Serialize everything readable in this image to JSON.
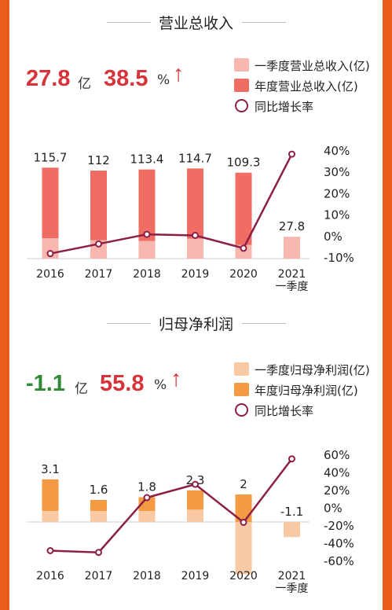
{
  "revenue": {
    "title": "营业总收入",
    "headline": {
      "value": "27.8",
      "unit": "亿",
      "growth": "38.5",
      "growth_unit": "%",
      "arrow": "↑",
      "value_color": "#d6333a",
      "growth_color": "#d6333a"
    },
    "legend": [
      "一季度营业总收入(亿)",
      "年度营业总收入(亿)",
      "同比增长率"
    ],
    "colors": {
      "q1": "#f7b7ae",
      "annual": "#ef6d62",
      "line": "#8b1f48"
    },
    "chart_data": {
      "type": "bar+line",
      "categories": [
        "2016",
        "2017",
        "2018",
        "2019",
        "2020",
        "2021\n一季度"
      ],
      "series": [
        {
          "name": "一季度营业总收入(亿)",
          "values": [
            26,
            23.5,
            22.5,
            25.5,
            17.5,
            27.8
          ]
        },
        {
          "name": "年度营业总收入(亿)",
          "values": [
            115.7,
            112,
            113.4,
            114.7,
            109.3,
            null
          ]
        },
        {
          "name": "同比增长率",
          "unit": "%",
          "values": [
            -8,
            -3.5,
            1,
            0.5,
            -5.5,
            38.5
          ]
        }
      ],
      "bar_labels": [
        "115.7",
        "112",
        "113.4",
        "114.7",
        "109.3",
        "27.8"
      ],
      "y_right_ticks": [
        "40%",
        "30%",
        "20%",
        "10%",
        "0%",
        "-10%"
      ],
      "y_right_range": [
        -10,
        40
      ],
      "y_left_range": [
        0,
        120
      ]
    }
  },
  "profit": {
    "title": "归母净利润",
    "headline": {
      "value": "-1.1",
      "unit": "亿",
      "growth": "55.8",
      "growth_unit": "%",
      "arrow": "↑",
      "value_color": "#2e8a36",
      "growth_color": "#d6333a"
    },
    "legend": [
      "一季度归母净利润(亿)",
      "年度归母净利润(亿)",
      "同比增长率"
    ],
    "colors": {
      "q1": "#f9c9a3",
      "annual": "#f39a43",
      "line": "#8b1f48"
    },
    "chart_data": {
      "type": "bar+line",
      "categories": [
        "2016",
        "2017",
        "2018",
        "2019",
        "2020",
        "2021\n一季度"
      ],
      "series": [
        {
          "name": "一季度归母净利润(亿)",
          "values": [
            0.8,
            0.8,
            0.8,
            0.9,
            -3.8,
            -1.1
          ]
        },
        {
          "name": "年度归母净利润(亿)",
          "values": [
            3.1,
            1.6,
            1.8,
            2.3,
            2,
            null
          ]
        },
        {
          "name": "同比增长率",
          "unit": "%",
          "values": [
            -48,
            -50,
            12,
            27,
            -16,
            55.8
          ]
        }
      ],
      "bar_labels": [
        "3.1",
        "1.6",
        "1.8",
        "2.3",
        "2",
        "-1.1"
      ],
      "y_right_ticks": [
        "60%",
        "40%",
        "20%",
        "0%",
        "-20%",
        "-40%",
        "-60%"
      ],
      "y_right_range": [
        -60,
        60
      ],
      "y_left_range": [
        -4.4,
        4.4
      ]
    }
  }
}
